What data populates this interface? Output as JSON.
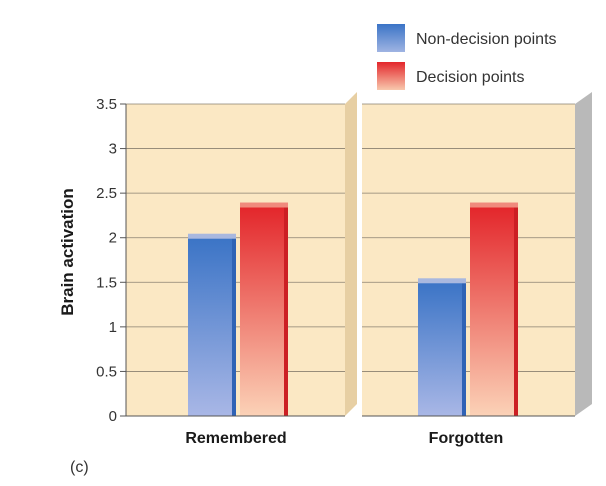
{
  "chart_data": {
    "type": "bar",
    "panel_label": "(c)",
    "ylabel": "Brain activation",
    "ylim": [
      0,
      3.5
    ],
    "yticks": [
      "0",
      "0.5",
      "1",
      "1.5",
      "2",
      "2.5",
      "3",
      "3.5"
    ],
    "ytick_values": [
      0,
      0.5,
      1,
      1.5,
      2,
      2.5,
      3,
      3.5
    ],
    "categories": [
      "Remembered",
      "Forgotten"
    ],
    "series": [
      {
        "name": "Non-decision points",
        "values": [
          2.0,
          1.5
        ]
      },
      {
        "name": "Decision points",
        "values": [
          2.35,
          2.35
        ]
      }
    ],
    "legend_position": "top-right",
    "grid": true
  },
  "colors": {
    "panel_bg": "#fbe8c4",
    "blue": "#3f78c4",
    "red": "#e2262b"
  }
}
